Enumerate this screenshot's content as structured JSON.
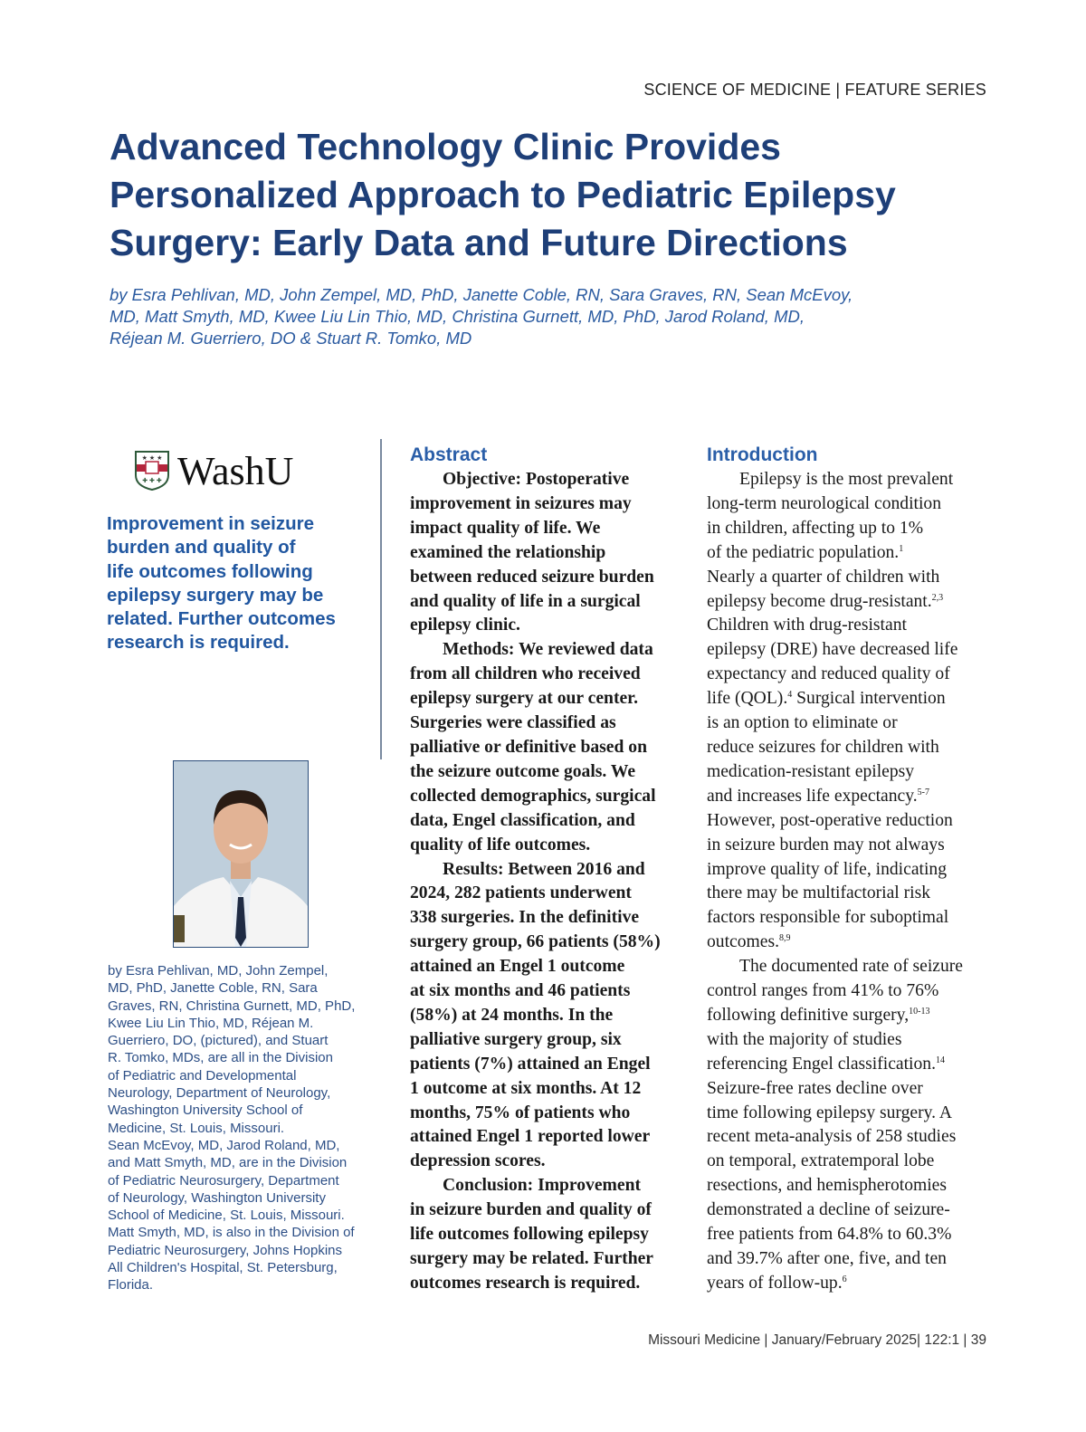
{
  "header": {
    "kicker": "SCIENCE OF MEDICINE | FEATURE SERIES"
  },
  "title": [
    "Advanced Technology Clinic Provides",
    "Personalized Approach to Pediatric Epilepsy",
    "Surgery: Early Data and Future Directions"
  ],
  "byline": [
    "by Esra Pehlivan, MD, John Zempel, MD, PhD, Janette Coble, RN, Sara Graves, RN, Sean McEvoy,",
    "MD, Matt Smyth, MD, Kwee Liu Lin Thio, MD, Christina Gurnett, MD, PhD, Jarod Roland, MD,",
    "Réjean M. Guerriero, DO & Stuart R. Tomko, MD"
  ],
  "logo": {
    "text": "WashU",
    "colors": {
      "shield_red": "#b4253c",
      "shield_green": "#2e5a3a"
    }
  },
  "blurb": [
    "Improvement in seizure",
    "burden and quality of",
    "life outcomes following",
    "epilepsy surgery may be",
    "related. Further outcomes",
    "research is required."
  ],
  "credits": [
    "by Esra Pehlivan, MD, John Zempel,",
    "MD, PhD, Janette Coble, RN, Sara",
    "Graves, RN, Christina Gurnett, MD, PhD,",
    "Kwee Liu Lin Thio, MD, Réjean M.",
    "Guerriero, DO, (pictured), and Stuart",
    "R. Tomko, MDs, are all in the Division",
    "of Pediatric and Developmental",
    "Neurology, Department of Neurology,",
    "Washington University School of",
    "Medicine, St. Louis, Missouri.",
    "Sean McEvoy, MD, Jarod Roland, MD,",
    "and Matt Smyth, MD, are in the Division",
    "of Pediatric Neurosurgery, Department",
    "of Neurology, Washington University",
    "School of Medicine, St. Louis, Missouri.",
    "Matt Smyth, MD, is also in the Division of",
    "Pediatric Neurosurgery, Johns Hopkins",
    "All Children's Hospital, St. Petersburg,",
    "Florida."
  ],
  "abstract": {
    "heading": "Abstract",
    "lines": [
      [
        {
          "ind": true
        },
        "Objective: Postoperative"
      ],
      [
        "improvement in seizures may"
      ],
      [
        "impact quality of life. We"
      ],
      [
        "examined the relationship"
      ],
      [
        "between reduced seizure burden"
      ],
      [
        "and quality of life in a surgical"
      ],
      [
        "epilepsy clinic."
      ],
      [
        {
          "ind": true
        },
        "Methods: We reviewed data"
      ],
      [
        "from all children who received"
      ],
      [
        "epilepsy surgery at our center."
      ],
      [
        "Surgeries were classified as"
      ],
      [
        "palliative or definitive based on"
      ],
      [
        "the seizure outcome goals. We"
      ],
      [
        "collected demographics, surgical"
      ],
      [
        "data, Engel classification, and"
      ],
      [
        "quality of life outcomes."
      ],
      [
        {
          "ind": true
        },
        "Results: Between 2016 and"
      ],
      [
        "2024, 282 patients underwent"
      ],
      [
        "338 surgeries. In the definitive"
      ],
      [
        "surgery group, 66 patients (58%)"
      ],
      [
        "attained an Engel 1 outcome"
      ],
      [
        "at six months and 46 patients"
      ],
      [
        "(58%) at 24 months. In the"
      ],
      [
        "palliative surgery group, six"
      ],
      [
        "patients (7%) attained an Engel"
      ],
      [
        "1 outcome at six months. At 12"
      ],
      [
        "months, 75% of patients who"
      ],
      [
        "attained Engel 1 reported lower"
      ],
      [
        "depression scores."
      ],
      [
        {
          "ind": true
        },
        "Conclusion: Improvement"
      ],
      [
        "in seizure burden and quality of"
      ],
      [
        "life outcomes following epilepsy"
      ],
      [
        "surgery may be related. Further"
      ],
      [
        "outcomes research is required."
      ]
    ]
  },
  "introduction": {
    "heading": "Introduction",
    "lines": [
      [
        {
          "ind": true
        },
        "Epilepsy is the most prevalent"
      ],
      [
        "long-term neurological condition"
      ],
      [
        "in children, affecting up to 1%"
      ],
      [
        "of the pediatric population.",
        {
          "sup": "1"
        }
      ],
      [
        "Nearly a quarter of children with"
      ],
      [
        "epilepsy become drug-resistant.",
        {
          "sup": "2,3"
        }
      ],
      [
        "Children with drug-resistant"
      ],
      [
        "epilepsy (DRE) have decreased life"
      ],
      [
        "expectancy and reduced quality of"
      ],
      [
        "life (QOL).",
        {
          "sup": "4"
        },
        " Surgical intervention"
      ],
      [
        "is an option to eliminate or"
      ],
      [
        "reduce seizures for children with"
      ],
      [
        "medication-resistant epilepsy"
      ],
      [
        "and increases life expectancy.",
        {
          "sup": "5-7"
        }
      ],
      [
        "However, post-operative reduction"
      ],
      [
        "in seizure burden may not always"
      ],
      [
        "improve quality of life, indicating"
      ],
      [
        "there may be multifactorial risk"
      ],
      [
        "factors responsible for suboptimal"
      ],
      [
        "outcomes.",
        {
          "sup": "8,9"
        }
      ],
      [
        {
          "ind": true
        },
        "The documented rate of seizure"
      ],
      [
        "control ranges from 41% to 76%"
      ],
      [
        "following definitive surgery,",
        {
          "sup": "10-13"
        }
      ],
      [
        "with the majority of studies"
      ],
      [
        "referencing Engel classification.",
        {
          "sup": "14"
        }
      ],
      [
        "Seizure-free rates decline over"
      ],
      [
        "time following epilepsy surgery. A"
      ],
      [
        "recent meta-analysis of 258 studies"
      ],
      [
        "on temporal, extratemporal lobe"
      ],
      [
        "resections, and hemispherotomies"
      ],
      [
        "demonstrated a decline of seizure-"
      ],
      [
        "free patients from 64.8% to 60.3%"
      ],
      [
        "and 39.7% after one, five, and ten"
      ],
      [
        "years of follow-up.",
        {
          "sup": "6"
        }
      ]
    ]
  },
  "footer": {
    "text": "Missouri Medicine | January/February 2025| 122:1 | 39"
  }
}
